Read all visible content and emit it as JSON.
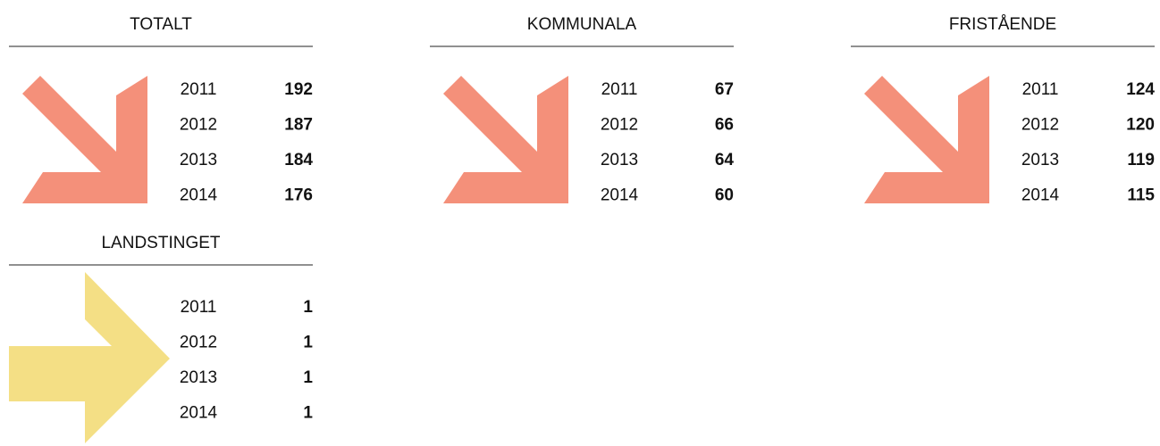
{
  "panels": [
    {
      "title": "TOTALT",
      "color": "#f4907a",
      "arrow": "down",
      "rows": [
        {
          "year": "2011",
          "value": 192
        },
        {
          "year": "2012",
          "value": 187
        },
        {
          "year": "2013",
          "value": 184
        },
        {
          "year": "2014",
          "value": 176
        }
      ]
    },
    {
      "title": "KOMMUNALA",
      "color": "#f4907a",
      "arrow": "down",
      "rows": [
        {
          "year": "2011",
          "value": 67
        },
        {
          "year": "2012",
          "value": 66
        },
        {
          "year": "2013",
          "value": 64
        },
        {
          "year": "2014",
          "value": 60
        }
      ]
    },
    {
      "title": "FRISTÅENDE",
      "color": "#f4907a",
      "arrow": "down",
      "rows": [
        {
          "year": "2011",
          "value": 124
        },
        {
          "year": "2012",
          "value": 120
        },
        {
          "year": "2013",
          "value": 119
        },
        {
          "year": "2014",
          "value": 115
        }
      ]
    },
    {
      "title": "LANDSTINGET",
      "color": "#f4df85",
      "arrow": "right",
      "rows": [
        {
          "year": "2011",
          "value": 1
        },
        {
          "year": "2012",
          "value": 1
        },
        {
          "year": "2013",
          "value": 1
        },
        {
          "year": "2014",
          "value": 1
        }
      ]
    }
  ]
}
